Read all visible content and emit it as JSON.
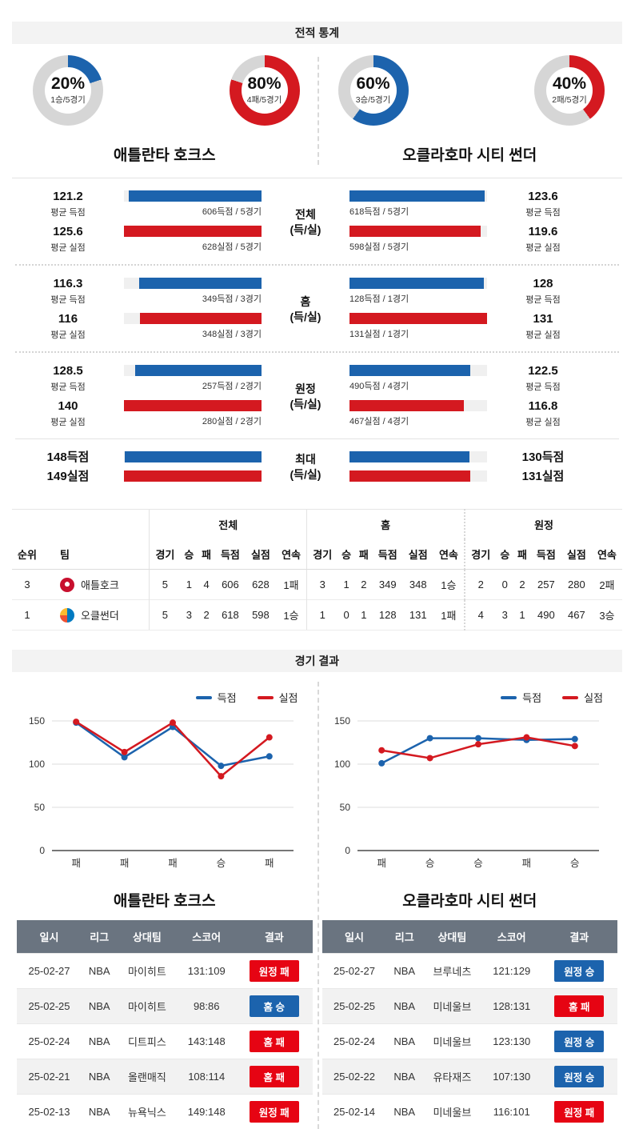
{
  "colors": {
    "blue": "#1c63ad",
    "red": "#d41920",
    "badge_win": "#1c63ad",
    "badge_loss": "#e60413",
    "donut_gray": "#d6d6d6",
    "bar_track": "#f0f0f0",
    "table_header": "#6a7480"
  },
  "sections": {
    "stats_title": "전적 통계",
    "results_title": "경기 결과"
  },
  "teams": {
    "left": {
      "name": "애틀란타 호크스",
      "short": "애틀호크"
    },
    "right": {
      "name": "오클라호마 시티 썬더",
      "short": "오클썬더"
    }
  },
  "donuts": [
    {
      "percent": 20,
      "label": "20%",
      "sub": "1승/5경기",
      "color": "blue"
    },
    {
      "percent": 80,
      "label": "80%",
      "sub": "4패/5경기",
      "color": "red"
    },
    {
      "percent": 60,
      "label": "60%",
      "sub": "3승/5경기",
      "color": "blue"
    },
    {
      "percent": 40,
      "label": "40%",
      "sub": "2패/5경기",
      "color": "red"
    }
  ],
  "stat_groups": [
    {
      "label": "전체",
      "sublabel": "(득/실)",
      "max": 125.6,
      "left": {
        "scored": {
          "num": 121.2,
          "value": "121.2",
          "label": "평균 득점",
          "detail": "606득점 / 5경기"
        },
        "conceded": {
          "num": 125.6,
          "value": "125.6",
          "label": "평균 실점",
          "detail": "628실점 / 5경기"
        }
      },
      "right": {
        "scored": {
          "num": 123.6,
          "value": "123.6",
          "label": "평균 득점",
          "detail": "618득점 / 5경기"
        },
        "conceded": {
          "num": 119.6,
          "value": "119.6",
          "label": "평균 실점",
          "detail": "598실점 / 5경기"
        }
      }
    },
    {
      "label": "홈",
      "sublabel": "(득/실)",
      "max": 131,
      "left": {
        "scored": {
          "num": 116.3,
          "value": "116.3",
          "label": "평균 득점",
          "detail": "349득점 / 3경기"
        },
        "conceded": {
          "num": 116,
          "value": "116",
          "label": "평균 실점",
          "detail": "348실점 / 3경기"
        }
      },
      "right": {
        "scored": {
          "num": 128,
          "value": "128",
          "label": "평균 득점",
          "detail": "128득점 / 1경기"
        },
        "conceded": {
          "num": 131,
          "value": "131",
          "label": "평균 실점",
          "detail": "131실점 / 1경기"
        }
      }
    },
    {
      "label": "원정",
      "sublabel": "(득/실)",
      "max": 140,
      "left": {
        "scored": {
          "num": 128.5,
          "value": "128.5",
          "label": "평균 득점",
          "detail": "257득점 / 2경기"
        },
        "conceded": {
          "num": 140,
          "value": "140",
          "label": "평균 실점",
          "detail": "280실점 / 2경기"
        }
      },
      "right": {
        "scored": {
          "num": 122.5,
          "value": "122.5",
          "label": "평균 득점",
          "detail": "490득점 / 4경기"
        },
        "conceded": {
          "num": 116.8,
          "value": "116.8",
          "label": "평균 실점",
          "detail": "467실점 / 4경기"
        }
      }
    },
    {
      "label": "최대",
      "sublabel": "(득/실)",
      "max": 149,
      "compact": true,
      "left": {
        "scored": {
          "num": 148,
          "value": "148득점"
        },
        "conceded": {
          "num": 149,
          "value": "149실점"
        }
      },
      "right": {
        "scored": {
          "num": 130,
          "value": "130득점"
        },
        "conceded": {
          "num": 131,
          "value": "131실점"
        }
      }
    }
  ],
  "standings": {
    "group_headers": [
      "전체",
      "홈",
      "원정"
    ],
    "col_rank": "순위",
    "col_team": "팀",
    "stat_cols": [
      "경기",
      "승",
      "패",
      "득점",
      "실점",
      "연속"
    ],
    "rows": [
      {
        "rank": "3",
        "team": "애틀호크",
        "logo": "hawks",
        "overall": [
          "5",
          "1",
          "4",
          "606",
          "628",
          "1패"
        ],
        "home": [
          "3",
          "1",
          "2",
          "349",
          "348",
          "1승"
        ],
        "away": [
          "2",
          "0",
          "2",
          "257",
          "280",
          "2패"
        ]
      },
      {
        "rank": "1",
        "team": "오클썬더",
        "logo": "thunder",
        "overall": [
          "5",
          "3",
          "2",
          "618",
          "598",
          "1승"
        ],
        "home": [
          "1",
          "0",
          "1",
          "128",
          "131",
          "1패"
        ],
        "away": [
          "4",
          "3",
          "1",
          "490",
          "467",
          "3승"
        ]
      }
    ]
  },
  "legend": {
    "scored": "득점",
    "conceded": "실점"
  },
  "chart_data": [
    {
      "type": "line",
      "title": "애틀란타 호크스 경기 결과",
      "categories": [
        "패",
        "패",
        "패",
        "승",
        "패"
      ],
      "series": [
        {
          "name": "득점",
          "values": [
            148,
            108,
            143,
            98,
            109
          ],
          "color": "#1c63ad"
        },
        {
          "name": "실점",
          "values": [
            149,
            114,
            148,
            86,
            131
          ],
          "color": "#d41920"
        }
      ],
      "ylim": [
        0,
        150
      ],
      "yticks": [
        0,
        50,
        100,
        150
      ],
      "grid": true,
      "legend_position": "top-right"
    },
    {
      "type": "line",
      "title": "오클라호마 시티 썬더 경기 결과",
      "categories": [
        "패",
        "승",
        "승",
        "패",
        "승"
      ],
      "series": [
        {
          "name": "득점",
          "values": [
            101,
            130,
            130,
            128,
            129
          ],
          "color": "#1c63ad"
        },
        {
          "name": "실점",
          "values": [
            116,
            107,
            123,
            131,
            121
          ],
          "color": "#d41920"
        }
      ],
      "ylim": [
        0,
        150
      ],
      "yticks": [
        0,
        50,
        100,
        150
      ],
      "grid": true,
      "legend_position": "top-right"
    }
  ],
  "result_tables": {
    "columns": [
      "일시",
      "리그",
      "상대팀",
      "스코어",
      "결과"
    ],
    "left": {
      "title": "애틀란타 호크스",
      "rows": [
        {
          "date": "25-02-27",
          "league": "NBA",
          "opponent": "마이히트",
          "score": "131:109",
          "result": "원정 패",
          "result_type": "loss"
        },
        {
          "date": "25-02-25",
          "league": "NBA",
          "opponent": "마이히트",
          "score": "98:86",
          "result": "홈 승",
          "result_type": "win"
        },
        {
          "date": "25-02-24",
          "league": "NBA",
          "opponent": "디트피스",
          "score": "143:148",
          "result": "홈 패",
          "result_type": "loss"
        },
        {
          "date": "25-02-21",
          "league": "NBA",
          "opponent": "올랜매직",
          "score": "108:114",
          "result": "홈 패",
          "result_type": "loss"
        },
        {
          "date": "25-02-13",
          "league": "NBA",
          "opponent": "뉴욕닉스",
          "score": "149:148",
          "result": "원정 패",
          "result_type": "loss"
        }
      ]
    },
    "right": {
      "title": "오클라호마 시티 썬더",
      "rows": [
        {
          "date": "25-02-27",
          "league": "NBA",
          "opponent": "브루네츠",
          "score": "121:129",
          "result": "원정 승",
          "result_type": "win"
        },
        {
          "date": "25-02-25",
          "league": "NBA",
          "opponent": "미네울브",
          "score": "128:131",
          "result": "홈 패",
          "result_type": "loss"
        },
        {
          "date": "25-02-24",
          "league": "NBA",
          "opponent": "미네울브",
          "score": "123:130",
          "result": "원정 승",
          "result_type": "win"
        },
        {
          "date": "25-02-22",
          "league": "NBA",
          "opponent": "유타재즈",
          "score": "107:130",
          "result": "원정 승",
          "result_type": "win"
        },
        {
          "date": "25-02-14",
          "league": "NBA",
          "opponent": "미네울브",
          "score": "116:101",
          "result": "원정 패",
          "result_type": "loss"
        }
      ]
    }
  }
}
